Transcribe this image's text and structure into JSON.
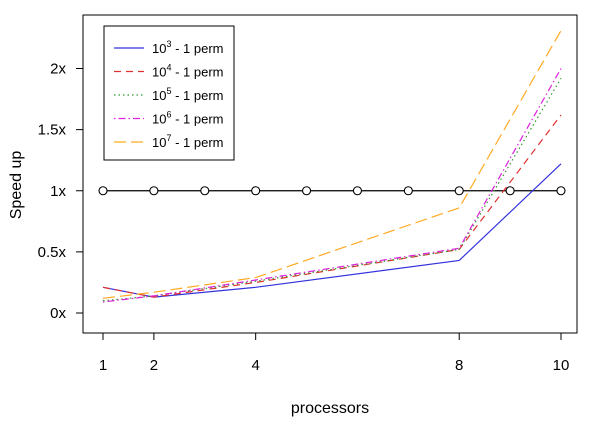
{
  "chart_data": {
    "type": "line",
    "xlabel": "processors",
    "ylabel": "Speed up",
    "xlim": [
      1,
      10
    ],
    "ylim": [
      0,
      2.35
    ],
    "x_ticks": [
      1,
      2,
      4,
      8,
      10
    ],
    "y_ticks": [
      0,
      0.5,
      1,
      1.5,
      2
    ],
    "y_tick_labels": [
      "0x",
      "0.5x",
      "1x",
      "1.5x",
      "2x"
    ],
    "grid": false,
    "legend_position": "top-left",
    "series": [
      {
        "name": "10^3 - 1 perm",
        "legend_base": "10",
        "legend_exp": "3",
        "legend_suffix": " - 1 perm",
        "color": "#3333dd",
        "dash": "solid",
        "x": [
          1,
          2,
          4,
          8,
          10
        ],
        "values": [
          0.21,
          0.13,
          0.21,
          0.43,
          1.22
        ]
      },
      {
        "name": "10^4 - 1 perm",
        "legend_base": "10",
        "legend_exp": "4",
        "legend_suffix": " - 1 perm",
        "color": "#e03030",
        "dash": "dashed",
        "x": [
          1,
          2,
          4,
          8,
          10
        ],
        "values": [
          0.21,
          0.13,
          0.25,
          0.52,
          1.62
        ]
      },
      {
        "name": "10^5 - 1 perm",
        "legend_base": "10",
        "legend_exp": "5",
        "legend_suffix": " - 1 perm",
        "color": "#2e9a2e",
        "dash": "dotted",
        "x": [
          1,
          2,
          4,
          8,
          10
        ],
        "values": [
          0.1,
          0.14,
          0.26,
          0.52,
          1.92
        ]
      },
      {
        "name": "10^6 - 1 perm",
        "legend_base": "10",
        "legend_exp": "6",
        "legend_suffix": " - 1 perm",
        "color": "#e020e0",
        "dash": "dotdash",
        "x": [
          1,
          2,
          4,
          8,
          10
        ],
        "values": [
          0.09,
          0.14,
          0.27,
          0.53,
          2.0
        ]
      },
      {
        "name": "10^7 - 1 perm",
        "legend_base": "10",
        "legend_exp": "7",
        "legend_suffix": " - 1 perm",
        "color": "#ffaa22",
        "dash": "longdash",
        "x": [
          1,
          2,
          4,
          8,
          10
        ],
        "values": [
          0.12,
          0.17,
          0.29,
          0.86,
          2.31
        ]
      }
    ],
    "reference_line": {
      "color": "#000000",
      "x": [
        1,
        2,
        3,
        4,
        5,
        6,
        7,
        8,
        9,
        10
      ],
      "values": [
        1,
        1,
        1,
        1,
        1,
        1,
        1,
        1,
        1,
        1
      ],
      "marker": "open-circle"
    }
  }
}
